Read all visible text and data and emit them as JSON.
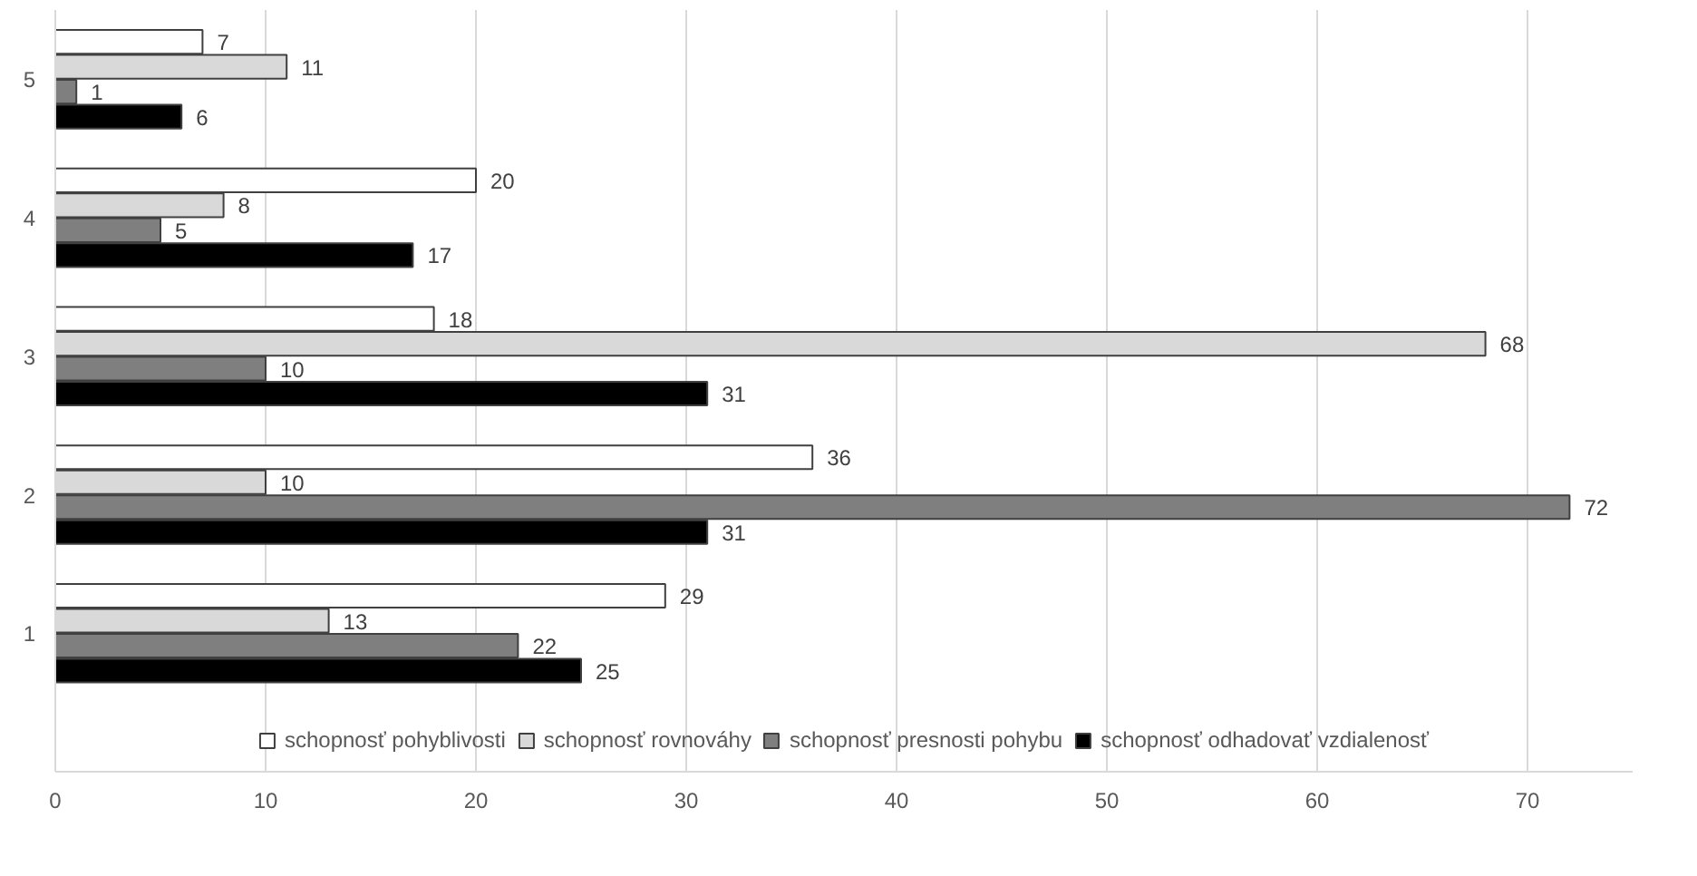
{
  "chart_data": {
    "type": "bar",
    "orientation": "horizontal",
    "categories": [
      "5",
      "4",
      "3",
      "2",
      "1"
    ],
    "series": [
      {
        "name": "schopnosť pohyblivosti",
        "color": "#ffffff",
        "values": [
          7,
          20,
          18,
          36,
          29
        ]
      },
      {
        "name": "schopnosť rovnováhy",
        "color": "#d9d9d9",
        "values": [
          11,
          8,
          68,
          10,
          13
        ]
      },
      {
        "name": "schopnosť presnosti pohybu",
        "color": "#7f7f7f",
        "values": [
          1,
          5,
          10,
          72,
          22
        ]
      },
      {
        "name": "schopnosť odhadovať vzdialenosť",
        "color": "#000000",
        "values": [
          6,
          17,
          31,
          31,
          25
        ]
      }
    ],
    "xlim": [
      0,
      75
    ],
    "xticks": [
      0,
      10,
      20,
      30,
      40,
      50,
      60,
      70
    ],
    "grid": "x",
    "legend": "bottom",
    "data_labels": true
  }
}
